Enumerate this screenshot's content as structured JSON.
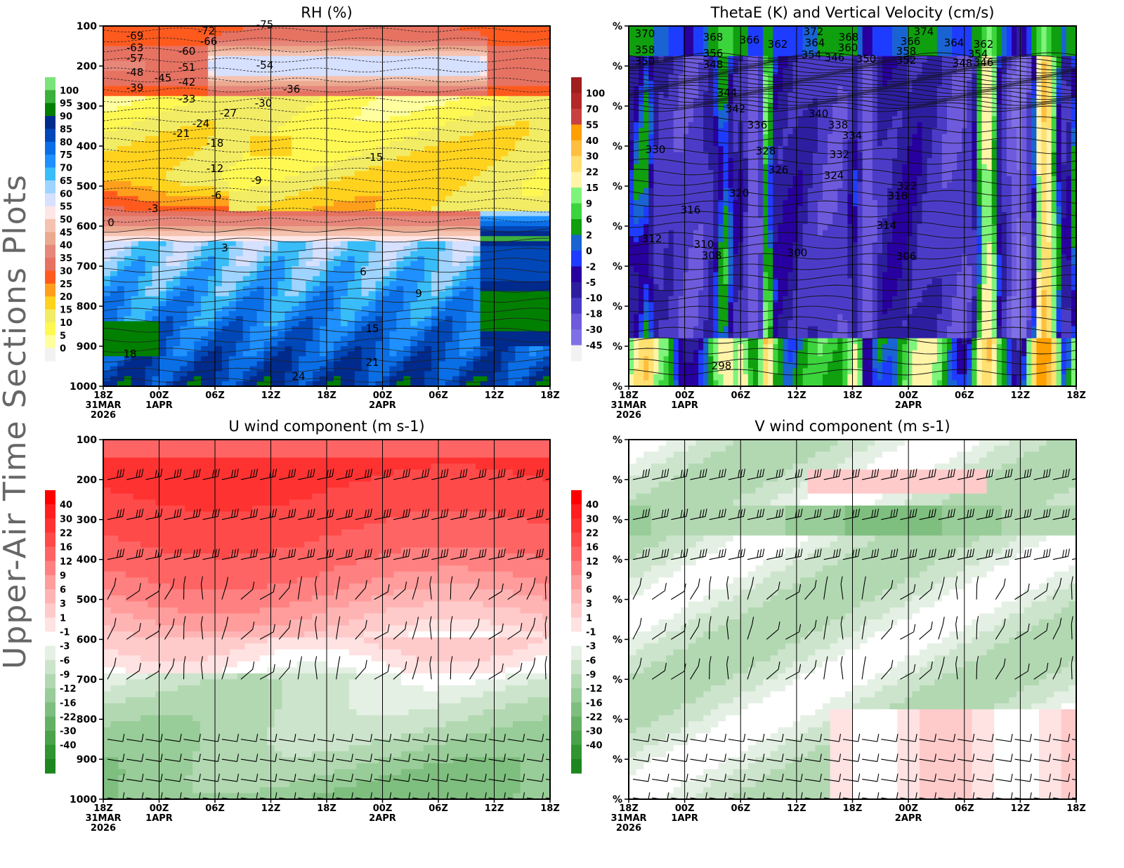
{
  "page_title": "Upper-Air Time Sections Plots",
  "chart_data": [
    {
      "type": "heatmap",
      "id": "rh",
      "title": "RH (%)",
      "y_axis": {
        "type": "pressure",
        "range": [
          1000,
          100
        ],
        "tick_labels": [
          "100",
          "200",
          "300",
          "400",
          "500",
          "600",
          "700",
          "800",
          "900",
          "1000"
        ]
      },
      "x_axis": {
        "tick_labels": [
          "18Z",
          "00Z",
          "06Z",
          "12Z",
          "18Z",
          "00Z",
          "06Z",
          "12Z",
          "18Z"
        ],
        "date_labels": [
          [
            "31MAR",
            "2026"
          ],
          [
            "1APR"
          ],
          [],
          [],
          [],
          [
            "2APR"
          ],
          [],
          [],
          []
        ]
      },
      "colorbar": {
        "levels": [
          "100",
          "95",
          "90",
          "85",
          "80",
          "75",
          "70",
          "65",
          "60",
          "55",
          "50",
          "45",
          "40",
          "35",
          "30",
          "25",
          "20",
          "15",
          "10",
          "5",
          "0"
        ],
        "colors": [
          "#7ce37a",
          "#3cb03c",
          "#007f00",
          "#002a8c",
          "#0047b8",
          "#0a6ee6",
          "#1e90ff",
          "#38bdf8",
          "#9ed4ff",
          "#d6e0ff",
          "#ffe6e6",
          "#f5c2b0",
          "#eba98f",
          "#e6877a",
          "#e67262",
          "#ff5a1e",
          "#ff9f1c",
          "#ffd21e",
          "#f2ec64",
          "#fff852",
          "#ffffa0",
          "#f2f2f2"
        ]
      },
      "contour_labels": [
        "-75",
        "-72",
        "-69",
        "-66",
        "-63",
        "-60",
        "-57",
        "-54",
        "-51",
        "-48",
        "-45",
        "-42",
        "-39",
        "-36",
        "-33",
        "-30",
        "-27",
        "-24",
        "-21",
        "-18",
        "-15",
        "-12",
        "-9",
        "-6",
        "-3",
        "0",
        "3",
        "6",
        "9",
        "15",
        "18",
        "21",
        "24"
      ]
    },
    {
      "type": "heatmap",
      "id": "thetae",
      "title": "ThetaE (K) and Vertical Velocity (cm/s)",
      "y_axis": {
        "tick_labels": [
          "%",
          "%",
          "%",
          "%",
          "%",
          "%",
          "%",
          "%",
          "%",
          "%"
        ]
      },
      "x_axis": {
        "tick_labels": [
          "18Z",
          "00Z",
          "06Z",
          "12Z",
          "18Z",
          "00Z",
          "06Z",
          "12Z",
          "18Z"
        ],
        "date_labels": [
          [
            "31MAR",
            "2026"
          ],
          [
            "1APR"
          ],
          [],
          [],
          [],
          [
            "2APR"
          ],
          [],
          [],
          []
        ]
      },
      "colorbar": {
        "levels": [
          "100",
          "70",
          "55",
          "40",
          "30",
          "22",
          "15",
          "9",
          "6",
          "2",
          "0",
          "-2",
          "-5",
          "-10",
          "-18",
          "-30",
          "-45"
        ],
        "colors": [
          "#a01e1e",
          "#b42828",
          "#c84040",
          "#ff9f00",
          "#ffbf40",
          "#ffe070",
          "#fff4a8",
          "#7ef47a",
          "#3cd43c",
          "#0f9f0f",
          "#1964d2",
          "#1e3cff",
          "#2800a0",
          "#2d1ea0",
          "#4b3cc8",
          "#6e5adc",
          "#8070e6",
          "#f2f2f2"
        ]
      },
      "contour_labels": [
        "370",
        "368",
        "366",
        "362",
        "372",
        "364",
        "368",
        "360",
        "374",
        "366",
        "364",
        "362",
        "358",
        "356",
        "354",
        "358",
        "354",
        "350",
        "348",
        "346",
        "352",
        "350",
        "348",
        "346",
        "344",
        "342",
        "340",
        "338",
        "336",
        "334",
        "332",
        "330",
        "328",
        "326",
        "324",
        "322",
        "320",
        "318",
        "316",
        "314",
        "312",
        "310",
        "308",
        "306",
        "300",
        "298"
      ]
    },
    {
      "type": "heatmap",
      "id": "uwind",
      "title": "U wind component (m s-1)",
      "y_axis": {
        "type": "pressure",
        "range": [
          1000,
          100
        ],
        "tick_labels": [
          "100",
          "200",
          "300",
          "400",
          "500",
          "600",
          "700",
          "800",
          "900",
          "1000"
        ]
      },
      "x_axis": {
        "tick_labels": [
          "18Z",
          "00Z",
          "06Z",
          "12Z",
          "18Z",
          "00Z",
          "06Z",
          "12Z",
          "18Z"
        ],
        "date_labels": [
          [
            "31MAR",
            "2026"
          ],
          [
            "1APR"
          ],
          [],
          [],
          [],
          [
            "2APR"
          ],
          [],
          [],
          []
        ]
      },
      "colorbar": {
        "levels": [
          "40",
          "30",
          "22",
          "16",
          "12",
          "9",
          "6",
          "3",
          "1",
          "-1",
          "-3",
          "-6",
          "-9",
          "-12",
          "-16",
          "-22",
          "-30",
          "-40"
        ],
        "colors": [
          "#ff0000",
          "#ff1e1e",
          "#ff3232",
          "#ff4a4a",
          "#ff6464",
          "#ff8080",
          "#ff9c9c",
          "#ffb4b4",
          "#ffcaca",
          "#ffe2e2",
          "#ffffff",
          "#e4f0e4",
          "#cce4cc",
          "#b2d8b2",
          "#98cc98",
          "#7ebe7e",
          "#64b064",
          "#4aa24a",
          "#309430",
          "#1e861e"
        ]
      },
      "wind_barb_levels": [
        "200",
        "300",
        "400",
        "500",
        "600",
        "700",
        "850",
        "900",
        "950",
        "1000"
      ]
    },
    {
      "type": "heatmap",
      "id": "vwind",
      "title": "V wind component (m s-1)",
      "y_axis": {
        "tick_labels": [
          "%",
          "%",
          "%",
          "%",
          "%",
          "%",
          "%",
          "%",
          "%",
          "%"
        ]
      },
      "x_axis": {
        "tick_labels": [
          "18Z",
          "00Z",
          "06Z",
          "12Z",
          "18Z",
          "00Z",
          "06Z",
          "12Z",
          "18Z"
        ],
        "date_labels": [
          [
            "31MAR",
            "2026"
          ],
          [
            "1APR"
          ],
          [],
          [],
          [],
          [
            "2APR"
          ],
          [],
          [],
          []
        ]
      },
      "colorbar": {
        "levels": [
          "40",
          "30",
          "22",
          "16",
          "12",
          "9",
          "6",
          "3",
          "1",
          "-1",
          "-3",
          "-6",
          "-9",
          "-12",
          "-16",
          "-22",
          "-30",
          "-40"
        ],
        "colors": [
          "#ff0000",
          "#ff1e1e",
          "#ff3232",
          "#ff4a4a",
          "#ff6464",
          "#ff8080",
          "#ff9c9c",
          "#ffb4b4",
          "#ffcaca",
          "#ffe2e2",
          "#ffffff",
          "#e4f0e4",
          "#cce4cc",
          "#b2d8b2",
          "#98cc98",
          "#7ebe7e",
          "#64b064",
          "#4aa24a",
          "#309430",
          "#1e861e"
        ]
      }
    }
  ]
}
